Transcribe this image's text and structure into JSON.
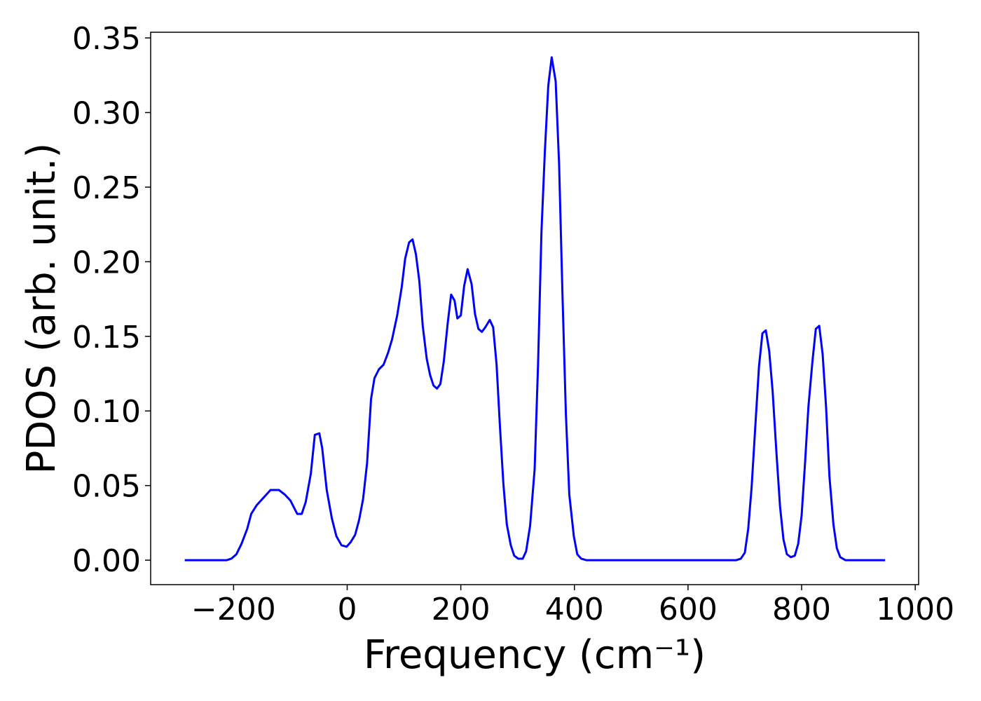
{
  "chart_data": {
    "type": "line",
    "xlabel": "Frequency (cm⁻¹)",
    "ylabel": "PDOS (arb. unit.)",
    "xlim": [
      -346,
      1006
    ],
    "ylim": [
      -0.0164,
      0.3538
    ],
    "xticks": [
      {
        "value": -200,
        "label": "−200"
      },
      0,
      200,
      400,
      600,
      800,
      1000
    ],
    "yticks": [
      {
        "value": 0,
        "label": "0.00"
      },
      {
        "value": 0.05,
        "label": "0.05"
      },
      {
        "value": 0.1,
        "label": "0.10"
      },
      {
        "value": 0.15,
        "label": "0.15"
      },
      {
        "value": 0.2,
        "label": "0.20"
      },
      {
        "value": 0.25,
        "label": "0.25"
      },
      {
        "value": 0.3,
        "label": "0.30"
      },
      {
        "value": 0.35,
        "label": "0.35"
      }
    ],
    "grid": false,
    "series": [
      {
        "color": "#0000ff",
        "x": [
          -286,
          -212,
          -204,
          -195,
          -186,
          -176,
          -169,
          -159,
          -147,
          -135,
          -127,
          -120,
          -110,
          -100,
          -88,
          -80,
          -73,
          -64,
          -57,
          -49,
          -44,
          -36,
          -27,
          -19,
          -10,
          -1,
          6,
          14,
          21,
          28,
          35,
          42,
          48,
          56,
          64,
          72,
          79,
          88,
          96,
          102,
          109,
          115,
          121,
          127,
          133,
          140,
          146,
          152,
          158,
          164,
          170,
          177,
          183,
          189,
          194,
          200,
          206,
          212,
          219,
          225,
          231,
          237,
          243,
          251,
          257,
          263,
          269,
          275,
          281,
          288,
          294,
          301,
          309,
          315,
          322,
          330,
          336,
          342,
          348,
          354,
          360,
          367,
          373,
          379,
          385,
          391,
          399,
          405,
          412,
          421,
          685,
          693,
          700,
          706,
          712,
          719,
          725,
          731,
          737,
          743,
          749,
          756,
          762,
          768,
          774,
          781,
          788,
          794,
          800,
          806,
          812,
          819,
          825,
          831,
          837,
          843,
          849,
          856,
          862,
          868,
          877,
          947
        ],
        "values": [
          0,
          0,
          0.001,
          0.004,
          0.011,
          0.021,
          0.031,
          0.037,
          0.042,
          0.047,
          0.047,
          0.047,
          0.044,
          0.04,
          0.031,
          0.031,
          0.039,
          0.058,
          0.084,
          0.085,
          0.075,
          0.047,
          0.028,
          0.016,
          0.01,
          0.009,
          0.012,
          0.017,
          0.027,
          0.041,
          0.065,
          0.108,
          0.122,
          0.128,
          0.131,
          0.139,
          0.148,
          0.164,
          0.183,
          0.202,
          0.213,
          0.215,
          0.205,
          0.187,
          0.157,
          0.135,
          0.124,
          0.117,
          0.115,
          0.118,
          0.133,
          0.159,
          0.178,
          0.174,
          0.162,
          0.164,
          0.184,
          0.195,
          0.185,
          0.165,
          0.155,
          0.153,
          0.156,
          0.161,
          0.156,
          0.131,
          0.089,
          0.051,
          0.024,
          0.01,
          0.003,
          0.001,
          0.001,
          0.006,
          0.023,
          0.061,
          0.131,
          0.22,
          0.274,
          0.318,
          0.337,
          0.321,
          0.266,
          0.178,
          0.098,
          0.044,
          0.016,
          0.004,
          0.001,
          0,
          0,
          0.001,
          0.005,
          0.021,
          0.049,
          0.093,
          0.13,
          0.152,
          0.154,
          0.14,
          0.113,
          0.07,
          0.036,
          0.014,
          0.004,
          0.002,
          0.003,
          0.011,
          0.03,
          0.065,
          0.103,
          0.133,
          0.155,
          0.157,
          0.138,
          0.103,
          0.056,
          0.024,
          0.008,
          0.002,
          0,
          0
        ]
      }
    ]
  }
}
